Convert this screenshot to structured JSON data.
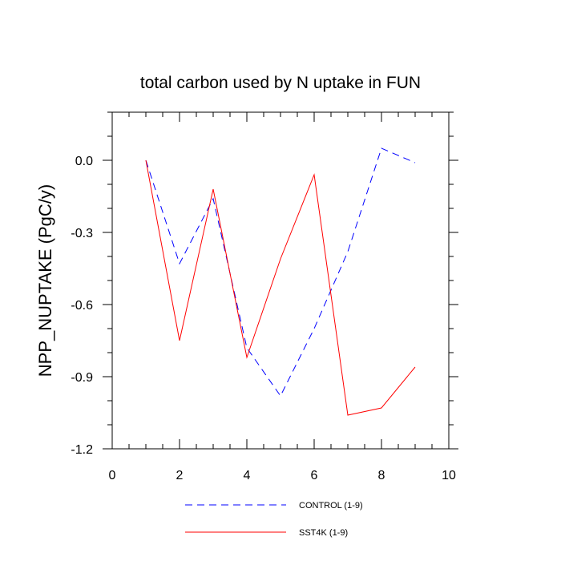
{
  "chart_data": {
    "type": "line",
    "title": "total carbon used by N uptake in FUN",
    "xlabel": "",
    "ylabel": "NPP_NUPTAKE  (PgC/y)",
    "xlim": [
      0,
      10
    ],
    "ylim": [
      -1.2,
      0.2
    ],
    "x_ticks": [
      "0",
      "2",
      "4",
      "6",
      "8",
      "10"
    ],
    "y_ticks": [
      "0.0",
      "-0.3",
      "-0.6",
      "-0.9",
      "-1.2"
    ],
    "grid": false,
    "legend_position": "bottom",
    "series": [
      {
        "name": "CONTROL (1-9)",
        "color": "#0000ff",
        "style": "dashed",
        "x": [
          1,
          2,
          3,
          4,
          5,
          6,
          7,
          8,
          9
        ],
        "y": [
          0.0,
          -0.43,
          -0.16,
          -0.78,
          -0.98,
          -0.7,
          -0.38,
          0.05,
          -0.01
        ]
      },
      {
        "name": "SST4K (1-9)",
        "color": "#ff0000",
        "style": "solid",
        "x": [
          1,
          2,
          3,
          4,
          5,
          6,
          7,
          8,
          9
        ],
        "y": [
          0.0,
          -0.75,
          -0.12,
          -0.82,
          -0.41,
          -0.06,
          -1.06,
          -1.03,
          -0.86
        ]
      }
    ]
  }
}
